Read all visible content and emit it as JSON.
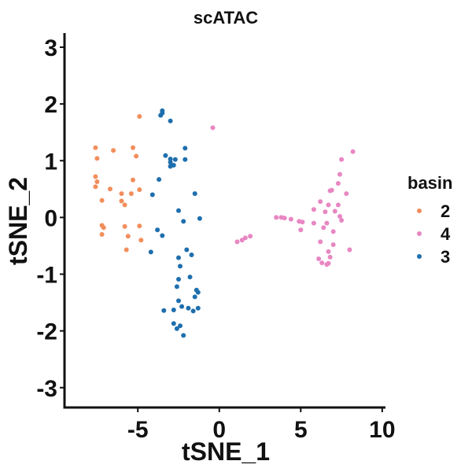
{
  "chart_data": {
    "type": "scatter",
    "title": "scATAC",
    "xlabel": "tSNE_1",
    "ylabel": "tSNE_2",
    "xlim": [
      -9.5,
      10.2
    ],
    "ylim": [
      -3.35,
      3.25
    ],
    "xticks": [
      -5,
      0,
      5,
      10
    ],
    "yticks": [
      -3,
      -2,
      -1,
      0,
      1,
      2,
      3
    ],
    "xtick_labels": [
      "-5",
      "0",
      "5",
      "10"
    ],
    "ytick_labels": [
      "-3",
      "-2",
      "-1",
      "0",
      "1",
      "2",
      "3"
    ],
    "grid": false,
    "legend": {
      "title": "basin",
      "position": "right",
      "entries": [
        "2",
        "4",
        "3"
      ]
    },
    "series": [
      {
        "name": "2",
        "color": "#f28e5c",
        "points": [
          [
            -4.9,
            1.78
          ],
          [
            -7.6,
            1.23
          ],
          [
            -6.5,
            1.18
          ],
          [
            -5.3,
            1.23
          ],
          [
            -7.5,
            1.04
          ],
          [
            -5.1,
            1.08
          ],
          [
            -7.6,
            0.72
          ],
          [
            -7.5,
            0.63
          ],
          [
            -5.3,
            0.66
          ],
          [
            -7.6,
            0.54
          ],
          [
            -6.7,
            0.5
          ],
          [
            -4.9,
            0.49
          ],
          [
            -6.0,
            0.42
          ],
          [
            -5.4,
            0.42
          ],
          [
            -7.2,
            0.3
          ],
          [
            -6.0,
            0.29
          ],
          [
            -5.8,
            0.22
          ],
          [
            -7.2,
            -0.14
          ],
          [
            -7.1,
            -0.18
          ],
          [
            -5.8,
            -0.16
          ],
          [
            -4.9,
            -0.15
          ],
          [
            -7.2,
            -0.3
          ],
          [
            -5.6,
            -0.33
          ],
          [
            -4.8,
            -0.4
          ],
          [
            -5.7,
            -0.57
          ]
        ]
      },
      {
        "name": "4",
        "color": "#e887c3",
        "points": [
          [
            -0.4,
            1.58
          ],
          [
            8.2,
            1.16
          ],
          [
            7.5,
            1.02
          ],
          [
            7.4,
            0.76
          ],
          [
            7.3,
            0.6
          ],
          [
            6.9,
            0.48
          ],
          [
            6.8,
            0.47
          ],
          [
            7.8,
            0.42
          ],
          [
            6.2,
            0.28
          ],
          [
            6.7,
            0.22
          ],
          [
            7.3,
            0.22
          ],
          [
            5.8,
            0.14
          ],
          [
            7.1,
            0.11
          ],
          [
            6.5,
            0.1
          ],
          [
            7.4,
            0.02
          ],
          [
            3.5,
            0.0
          ],
          [
            3.8,
            0.0
          ],
          [
            4.0,
            -0.01
          ],
          [
            4.4,
            -0.03
          ],
          [
            4.9,
            -0.07
          ],
          [
            5.1,
            -0.08
          ],
          [
            6.6,
            -0.1
          ],
          [
            5.8,
            -0.1
          ],
          [
            7.5,
            -0.05
          ],
          [
            6.4,
            -0.18
          ],
          [
            5.0,
            -0.22
          ],
          [
            7.0,
            -0.25
          ],
          [
            1.9,
            -0.33
          ],
          [
            1.6,
            -0.36
          ],
          [
            1.4,
            -0.4
          ],
          [
            1.1,
            -0.43
          ],
          [
            6.2,
            -0.43
          ],
          [
            7.0,
            -0.48
          ],
          [
            8.0,
            -0.57
          ],
          [
            6.7,
            -0.6
          ],
          [
            6.1,
            -0.73
          ],
          [
            6.8,
            -0.7
          ],
          [
            6.3,
            -0.8
          ],
          [
            6.6,
            -0.83
          ],
          [
            6.7,
            -0.81
          ]
        ]
      },
      {
        "name": "3",
        "color": "#1f6fad",
        "points": [
          [
            -3.5,
            1.88
          ],
          [
            -3.5,
            1.84
          ],
          [
            -3.6,
            1.8
          ],
          [
            -3.0,
            1.7
          ],
          [
            -2.1,
            1.22
          ],
          [
            -3.3,
            1.09
          ],
          [
            -3.0,
            1.03
          ],
          [
            -2.7,
            1.02
          ],
          [
            -2.1,
            1.02
          ],
          [
            -3.0,
            0.97
          ],
          [
            -2.8,
            0.92
          ],
          [
            -3.0,
            0.9
          ],
          [
            -3.7,
            0.67
          ],
          [
            -1.5,
            0.42
          ],
          [
            -4.1,
            0.4
          ],
          [
            -2.5,
            0.12
          ],
          [
            -2.2,
            -0.07
          ],
          [
            -1.2,
            -0.02
          ],
          [
            -3.8,
            -0.22
          ],
          [
            -3.5,
            -0.32
          ],
          [
            -4.2,
            -0.61
          ],
          [
            -2.0,
            -0.57
          ],
          [
            -1.7,
            -0.66
          ],
          [
            -2.5,
            -0.71
          ],
          [
            -2.4,
            -0.86
          ],
          [
            -2.5,
            -1.09
          ],
          [
            -1.8,
            -1.05
          ],
          [
            -2.6,
            -1.22
          ],
          [
            -1.4,
            -1.28
          ],
          [
            -1.3,
            -1.32
          ],
          [
            -1.5,
            -1.4
          ],
          [
            -2.5,
            -1.47
          ],
          [
            -2.3,
            -1.57
          ],
          [
            -1.9,
            -1.6
          ],
          [
            -1.3,
            -1.6
          ],
          [
            -1.6,
            -1.65
          ],
          [
            -3.4,
            -1.64
          ],
          [
            -2.8,
            -1.63
          ],
          [
            -2.8,
            -1.87
          ],
          [
            -2.6,
            -1.96
          ],
          [
            -2.4,
            -1.91
          ],
          [
            -2.2,
            -2.08
          ]
        ]
      }
    ]
  }
}
